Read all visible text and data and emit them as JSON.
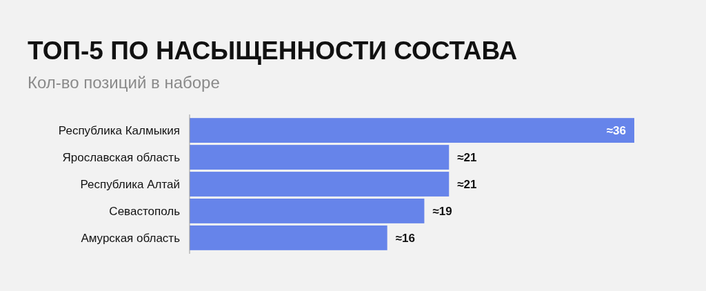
{
  "chart_data": {
    "type": "bar",
    "orientation": "horizontal",
    "title": "ТОП-5 ПО НАСЫЩЕННОСТИ СОСТАВА",
    "subtitle": "Кол-во позиций в наборе",
    "categories": [
      "Республика Калмыкия",
      "Ярославская область",
      "Республика Алтай",
      "Севастополь",
      "Амурская область"
    ],
    "values": [
      36,
      21,
      21,
      19,
      16
    ],
    "value_labels": [
      "≈36",
      "≈21",
      "≈21",
      "≈19",
      "≈16"
    ],
    "color": "#6684ea",
    "xlim": [
      0,
      36
    ]
  }
}
